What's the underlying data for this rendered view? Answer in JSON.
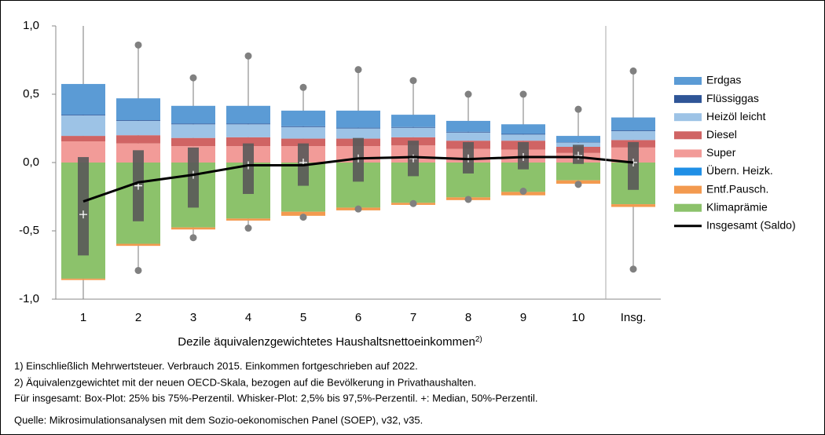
{
  "chart_data": {
    "type": "bar",
    "stacked": true,
    "categories": [
      "1",
      "2",
      "3",
      "4",
      "5",
      "6",
      "7",
      "8",
      "9",
      "10",
      "Insg."
    ],
    "xlabel": "Dezile äquivalenzgewichtetes Haushaltsnettoeinkommen",
    "xlabel_note": "2)",
    "ylim": [
      -1.0,
      1.0
    ],
    "yticks": [
      {
        "value": 1.0,
        "label": "1,0"
      },
      {
        "value": 0.5,
        "label": "0,5"
      },
      {
        "value": 0.0,
        "label": "0,0"
      },
      {
        "value": -0.5,
        "label": "-0,5"
      },
      {
        "value": -1.0,
        "label": "-1,0"
      }
    ],
    "series": [
      {
        "name": "Erdgas",
        "color": "#5b9bd5",
        "values": [
          0.225,
          0.16,
          0.13,
          0.13,
          0.115,
          0.125,
          0.09,
          0.08,
          0.07,
          0.047,
          0.095
        ]
      },
      {
        "name": "Flüssiggas",
        "color": "#2f5597",
        "values": [
          0.005,
          0.005,
          0.005,
          0.005,
          0.005,
          0.005,
          0.005,
          0.005,
          0.005,
          0.003,
          0.005
        ]
      },
      {
        "name": "Heizöl leicht",
        "color": "#9dc3e6",
        "values": [
          0.15,
          0.105,
          0.1,
          0.095,
          0.085,
          0.075,
          0.07,
          0.06,
          0.045,
          0.03,
          0.065
        ]
      },
      {
        "name": "Diesel",
        "color": "#d06464",
        "values": [
          0.04,
          0.06,
          0.06,
          0.065,
          0.055,
          0.055,
          0.06,
          0.06,
          0.065,
          0.045,
          0.055
        ]
      },
      {
        "name": "Super",
        "color": "#f29b98",
        "values": [
          0.155,
          0.14,
          0.12,
          0.12,
          0.12,
          0.12,
          0.125,
          0.1,
          0.095,
          0.07,
          0.11
        ]
      },
      {
        "name": "Übern. Heizk.",
        "color": "#1f8fe6",
        "values": [
          0,
          0,
          0,
          0,
          0,
          0,
          0,
          0,
          0,
          0,
          0
        ]
      },
      {
        "name": "Entf.Pausch.",
        "color": "#f39a4f",
        "values": [
          -0.01,
          -0.015,
          -0.015,
          -0.015,
          -0.03,
          -0.02,
          -0.015,
          -0.02,
          -0.025,
          -0.025,
          -0.02
        ]
      },
      {
        "name": "Klimaprämie",
        "color": "#8cc26b",
        "values": [
          -0.85,
          -0.595,
          -0.475,
          -0.41,
          -0.36,
          -0.33,
          -0.295,
          -0.255,
          -0.215,
          -0.13,
          -0.305
        ]
      },
      {
        "name": "Insgesamt (Saldo)",
        "type": "line",
        "color": "#000000",
        "values": [
          -0.285,
          -0.145,
          -0.09,
          -0.02,
          -0.02,
          0.03,
          0.04,
          0.025,
          0.04,
          0.04,
          0.0
        ]
      }
    ],
    "boxplot": {
      "whisker_high": [
        1.0,
        0.86,
        0.62,
        0.78,
        0.55,
        0.68,
        0.6,
        0.5,
        0.5,
        0.39,
        0.67
      ],
      "q75": [
        0.04,
        0.09,
        0.11,
        0.14,
        0.14,
        0.18,
        0.16,
        0.15,
        0.15,
        0.13,
        0.15
      ],
      "median": [
        -0.38,
        -0.17,
        -0.09,
        -0.02,
        0.0,
        0.03,
        0.03,
        0.03,
        0.04,
        0.05,
        0.0
      ],
      "q25": [
        -0.68,
        -0.43,
        -0.33,
        -0.23,
        -0.17,
        -0.14,
        -0.1,
        -0.08,
        -0.05,
        -0.01,
        -0.2
      ],
      "whisker_low": [
        -1.0,
        -0.79,
        -0.55,
        -0.48,
        -0.4,
        -0.34,
        -0.3,
        -0.27,
        -0.21,
        -0.16,
        -0.78
      ]
    }
  },
  "footnotes": [
    "1)  Einschließlich Mehrwertsteuer. Verbrauch 2015. Einkommen fortgeschrieben auf 2022.",
    "2) Äquivalenzgewichtet mit der neuen OECD-Skala, bezogen auf die Bevölkerung in Privathaushalten.",
    "Für insgesamt: Box-Plot: 25% bis 75%-Perzentil. Whisker-Plot: 2,5% bis 97,5%-Perzentil. +: Median, 50%-Perzentil.",
    "Quelle: Mikrosimulationsanalysen mit dem Sozio-oekonomischen Panel (SOEP), v32, v35."
  ]
}
